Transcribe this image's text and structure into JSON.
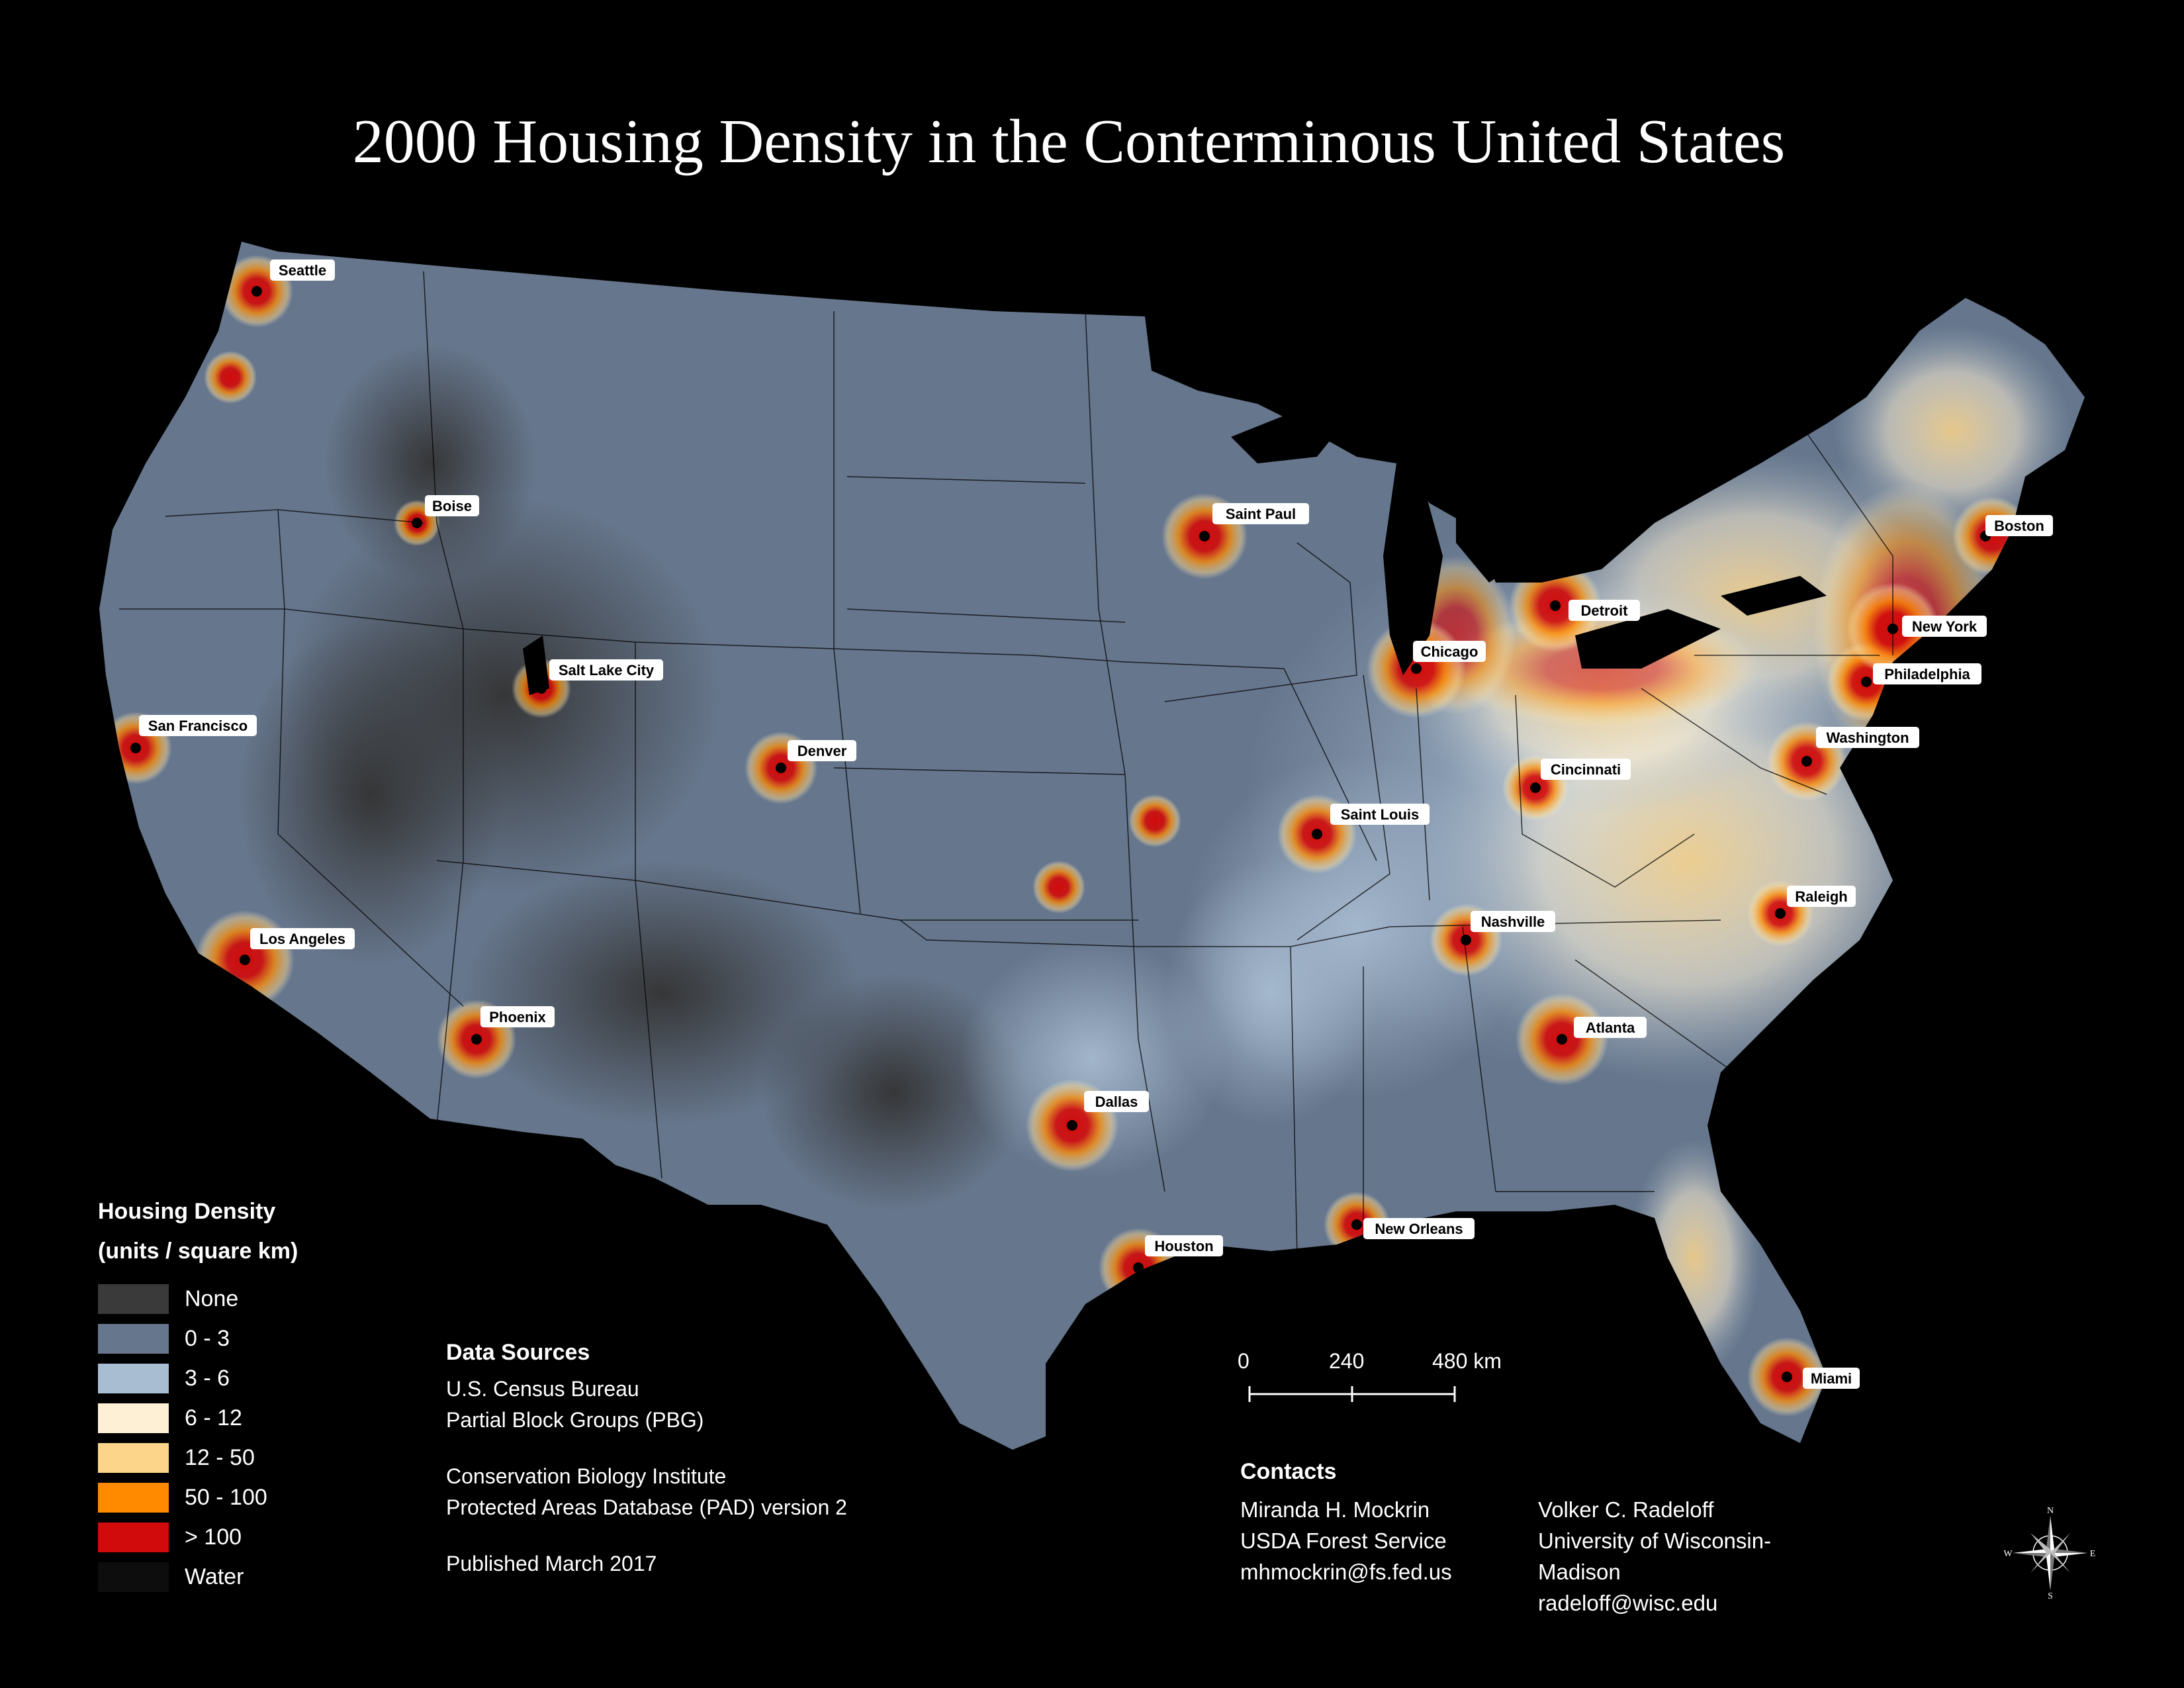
{
  "title": "2000 Housing Density in the Conterminous United States",
  "legend": {
    "title_line1": "Housing Density",
    "title_line2": "(units / square km)",
    "classes": [
      {
        "label": "None",
        "color": "#3a3a3a"
      },
      {
        "label": "0 - 3",
        "color": "#66768c"
      },
      {
        "label": "3 - 6",
        "color": "#a9bdd2"
      },
      {
        "label": "6 - 12",
        "color": "#fdf0d4"
      },
      {
        "label": "12 - 50",
        "color": "#fcd58a"
      },
      {
        "label": "50 - 100",
        "color": "#ff8a00"
      },
      {
        "label": "> 100",
        "color": "#d10b0b"
      },
      {
        "label": "Water",
        "color": "#0d0d0d"
      }
    ]
  },
  "sources": {
    "heading": "Data Sources",
    "line1": "U.S. Census Bureau",
    "line2": "Partial Block Groups (PBG)",
    "line3": "Conservation Biology Institute",
    "line4": "Protected Areas Database (PAD) version 2",
    "published": "Published March 2017"
  },
  "scale": {
    "labels": [
      "0",
      "240",
      "480 km"
    ]
  },
  "contacts": {
    "heading": "Contacts",
    "person1": {
      "name": "Miranda H. Mockrin",
      "org": "USDA Forest Service",
      "email": "mhmockrin@fs.fed.us"
    },
    "person2": {
      "name": "Volker C. Radeloff",
      "org": "University of Wisconsin-Madison",
      "email": "radeloff@wisc.edu"
    }
  },
  "compass": {
    "n": "N",
    "s": "S",
    "e": "E",
    "w": "W"
  },
  "cities": [
    {
      "name": "Seattle",
      "density": "high"
    },
    {
      "name": "Boise",
      "density": "high"
    },
    {
      "name": "Salt Lake City",
      "density": "high"
    },
    {
      "name": "San Francisco",
      "density": "high"
    },
    {
      "name": "Los Angeles",
      "density": "high"
    },
    {
      "name": "Phoenix",
      "density": "high"
    },
    {
      "name": "Denver",
      "density": "high"
    },
    {
      "name": "Dallas",
      "density": "high"
    },
    {
      "name": "Houston",
      "density": "high"
    },
    {
      "name": "New Orleans",
      "density": "high"
    },
    {
      "name": "Saint Paul",
      "density": "high"
    },
    {
      "name": "Chicago",
      "density": "high"
    },
    {
      "name": "Detroit",
      "density": "high"
    },
    {
      "name": "Saint Louis",
      "density": "high"
    },
    {
      "name": "Nashville",
      "density": "high"
    },
    {
      "name": "Atlanta",
      "density": "high"
    },
    {
      "name": "Cincinnati",
      "density": "high"
    },
    {
      "name": "Raleigh",
      "density": "high"
    },
    {
      "name": "Washington",
      "density": "high"
    },
    {
      "name": "Philadelphia",
      "density": "high"
    },
    {
      "name": "New York",
      "density": "high"
    },
    {
      "name": "Boston",
      "density": "high"
    },
    {
      "name": "Miami",
      "density": "high"
    }
  ]
}
